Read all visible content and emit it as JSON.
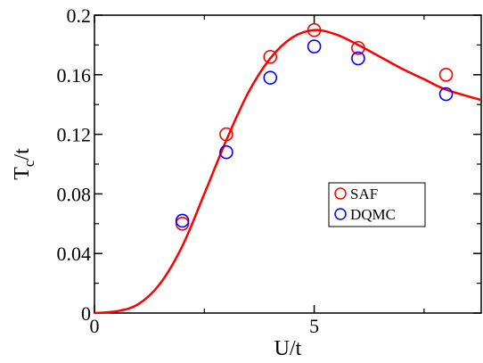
{
  "chart_data": {
    "type": "scatter",
    "xlabel": "U/t",
    "ylabel_main": "T",
    "ylabel_sub": "c",
    "ylabel_tail": "/t",
    "xlim": [
      0,
      8.8
    ],
    "ylim": [
      0,
      0.2
    ],
    "x_ticks": [
      0,
      5
    ],
    "x_tick_labels": [
      "0",
      "5"
    ],
    "y_ticks": [
      0,
      0.04,
      0.08,
      0.12,
      0.16,
      0.2
    ],
    "y_tick_labels": [
      "0",
      "0.04",
      "0.08",
      "0.12",
      "0.16",
      "0.2"
    ],
    "grid": false,
    "legend_position": "center-right",
    "series": [
      {
        "name": "SAF",
        "color": "#ff0000",
        "marker": "open-circle",
        "points": [
          {
            "x": 2,
            "y": 0.06
          },
          {
            "x": 3,
            "y": 0.12
          },
          {
            "x": 4,
            "y": 0.172
          },
          {
            "x": 5,
            "y": 0.19
          },
          {
            "x": 6,
            "y": 0.178
          },
          {
            "x": 8,
            "y": 0.16
          }
        ]
      },
      {
        "name": "DQMC",
        "color": "#0000ff",
        "marker": "open-circle",
        "points": [
          {
            "x": 2,
            "y": 0.062
          },
          {
            "x": 3,
            "y": 0.108
          },
          {
            "x": 4,
            "y": 0.158
          },
          {
            "x": 5,
            "y": 0.179
          },
          {
            "x": 6,
            "y": 0.171
          },
          {
            "x": 8,
            "y": 0.147
          }
        ]
      }
    ],
    "curve": {
      "color": "#ff0000",
      "points": [
        [
          0,
          0
        ],
        [
          0.5,
          0.0012
        ],
        [
          1.0,
          0.006
        ],
        [
          1.5,
          0.02
        ],
        [
          2.0,
          0.045
        ],
        [
          2.5,
          0.08
        ],
        [
          3.0,
          0.116
        ],
        [
          3.5,
          0.148
        ],
        [
          4.0,
          0.171
        ],
        [
          4.5,
          0.185
        ],
        [
          5.0,
          0.19
        ],
        [
          5.5,
          0.187
        ],
        [
          6.0,
          0.18
        ],
        [
          6.5,
          0.172
        ],
        [
          7.0,
          0.164
        ],
        [
          7.5,
          0.157
        ],
        [
          8.0,
          0.15
        ],
        [
          8.8,
          0.143
        ]
      ]
    }
  }
}
